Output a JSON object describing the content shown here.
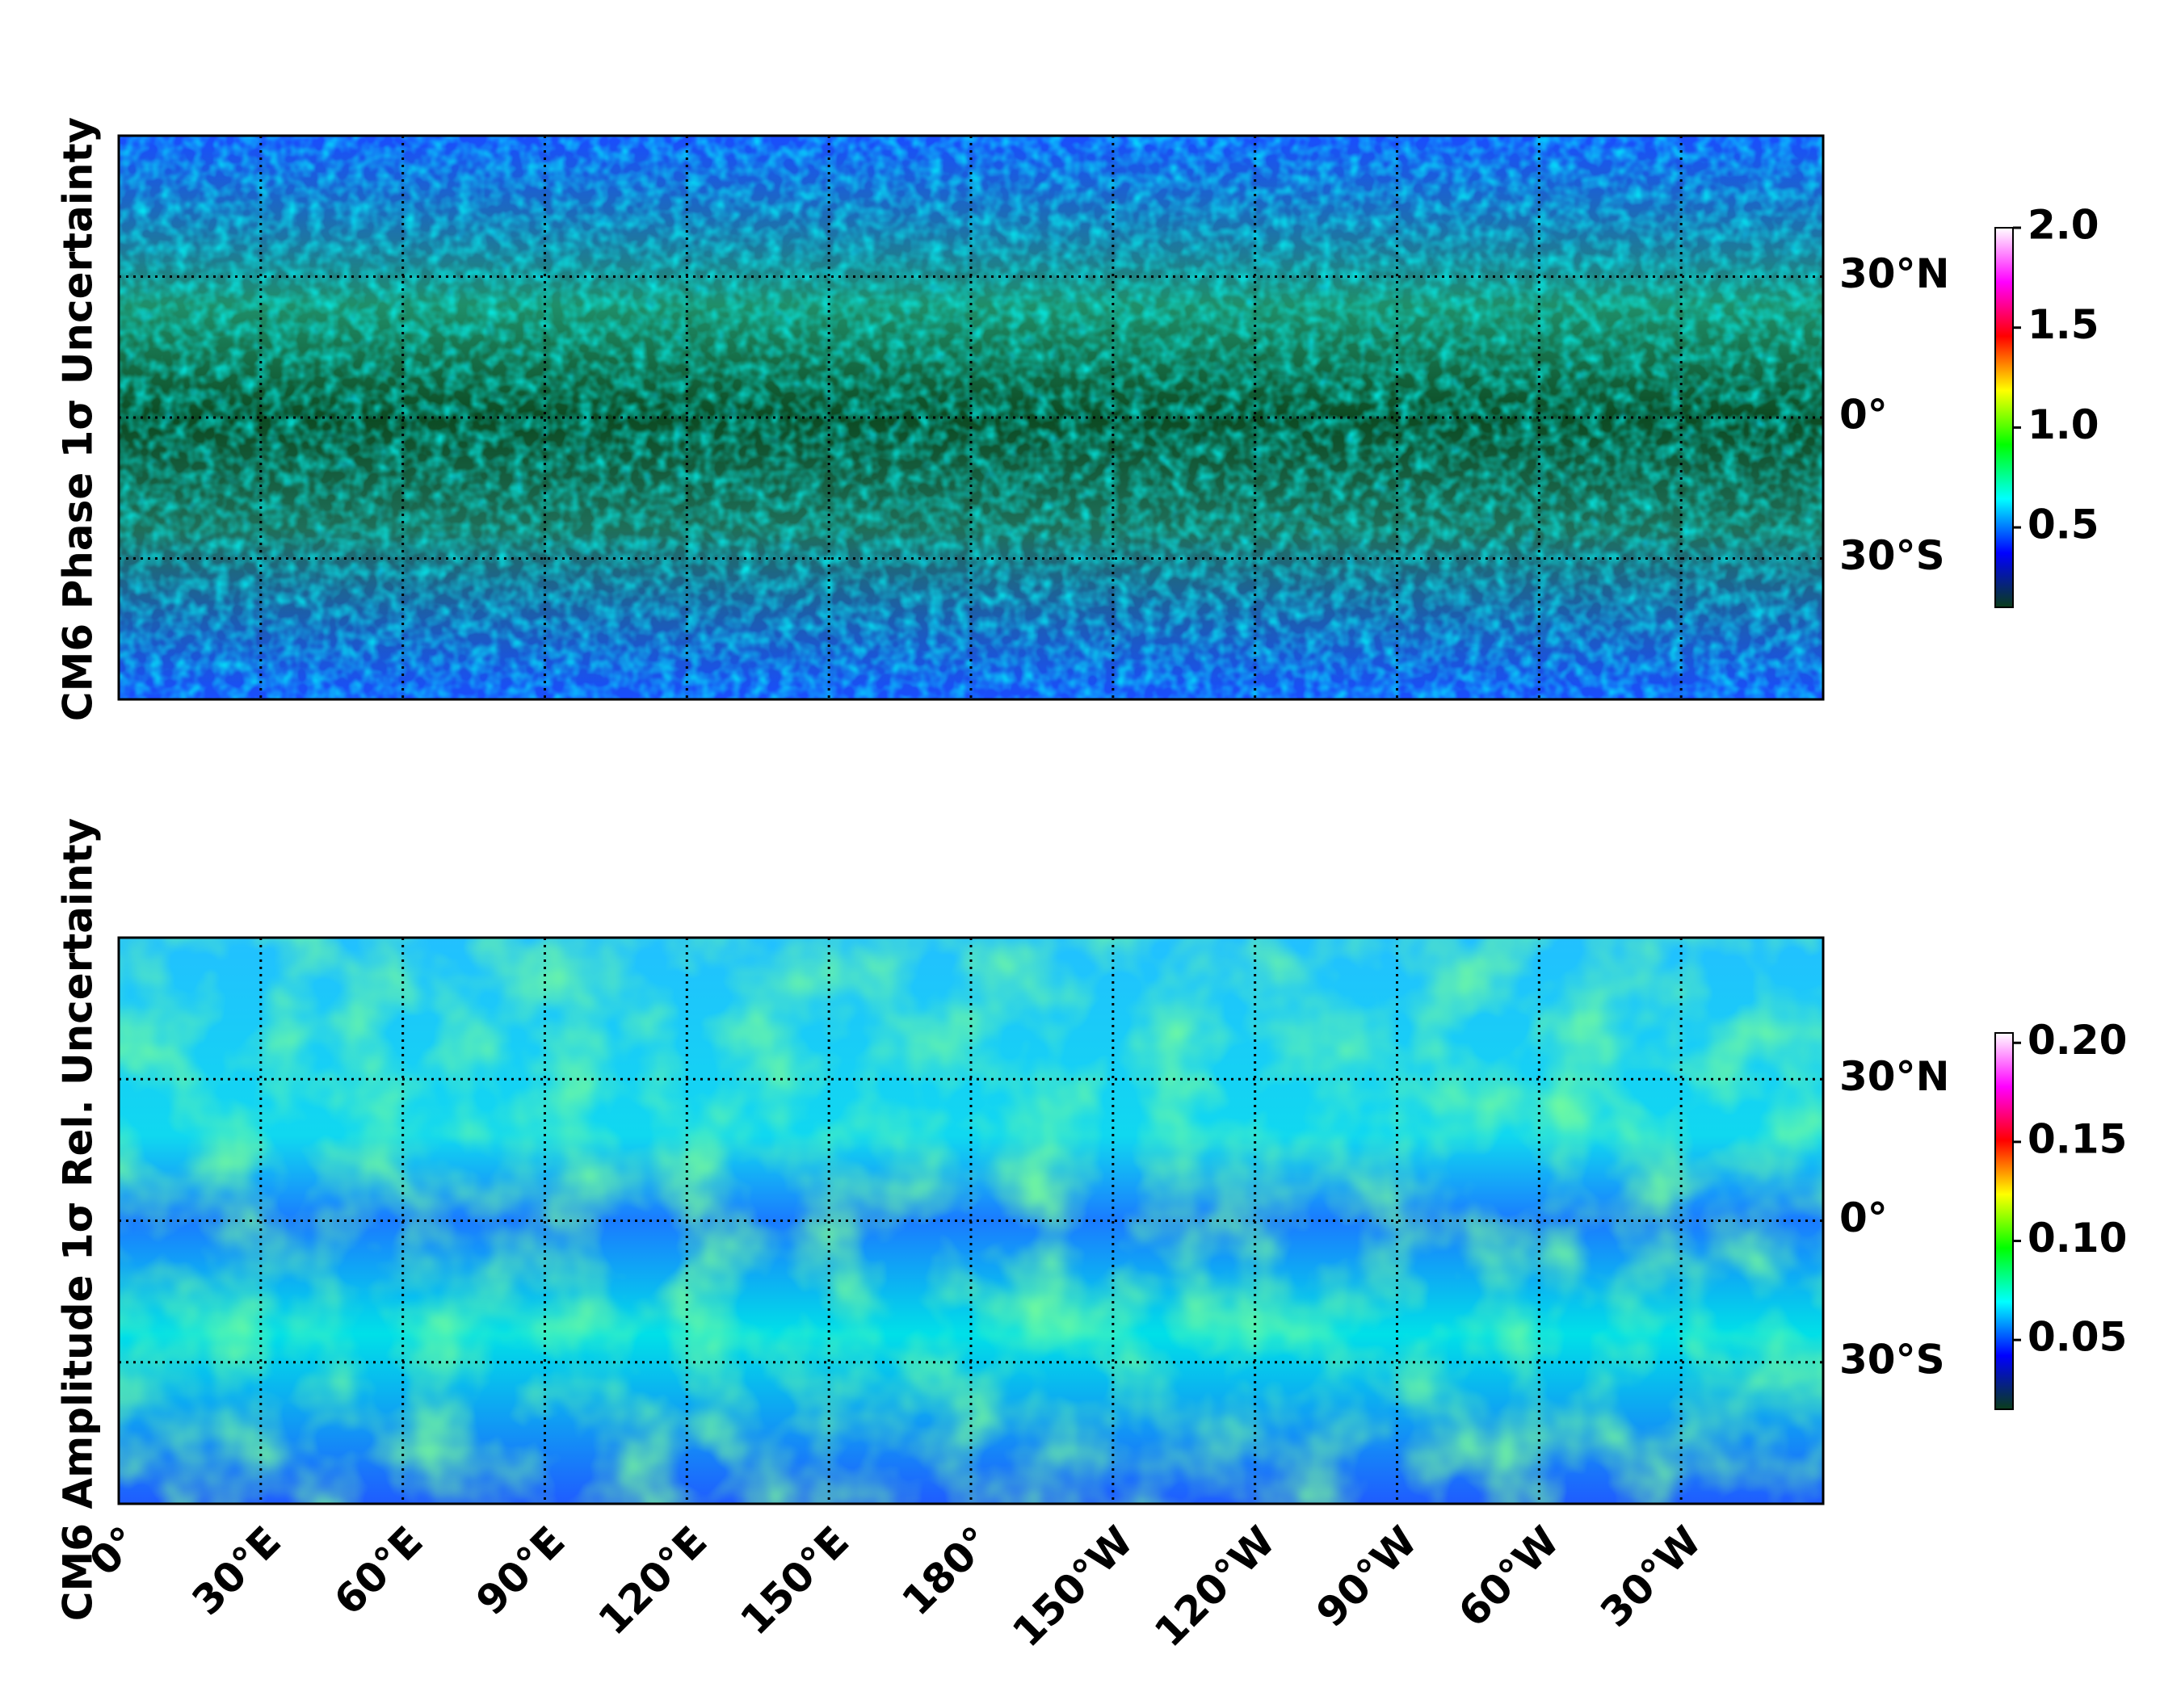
{
  "panels": [
    {
      "ylabel": "CM6 Phase 1σ Uncertainty",
      "xlim": [
        0,
        360
      ],
      "ylim": [
        -60,
        60
      ],
      "lat_ticks": [
        {
          "value": 30,
          "label": "30°N"
        },
        {
          "value": 0,
          "label": "0°"
        },
        {
          "value": -30,
          "label": "30°S"
        }
      ],
      "colorbar": {
        "clim": [
          0.1,
          2.0
        ],
        "ticks": [
          {
            "value": 2,
            "label": "2.0"
          },
          1.5,
          {
            "value": 1,
            "label": "1.0"
          },
          0.5
        ]
      }
    },
    {
      "ylabel": "CM6 Amplitude 1σ Rel. Uncertainty",
      "xlim": [
        0,
        360
      ],
      "ylim": [
        -60,
        60
      ],
      "lat_ticks": [
        {
          "value": 30,
          "label": "30°N"
        },
        {
          "value": 0,
          "label": "0°"
        },
        {
          "value": -30,
          "label": "30°S"
        }
      ],
      "colorbar": {
        "clim": [
          0.015,
          0.205
        ],
        "ticks": [
          {
            "value": 0.2,
            "label": "0.20"
          },
          0.15,
          {
            "value": 0.1,
            "label": "0.10"
          },
          0.05
        ]
      },
      "lon_ticks": [
        {
          "value": 0,
          "label": "0°"
        },
        {
          "value": 30,
          "label": "30°E"
        },
        {
          "value": 60,
          "label": "60°E"
        },
        {
          "value": 90,
          "label": "90°E"
        },
        {
          "value": 120,
          "label": "120°E"
        },
        {
          "value": 150,
          "label": "150°E"
        },
        {
          "value": 180,
          "label": "180°"
        },
        {
          "value": 210,
          "label": "150°W"
        },
        {
          "value": 240,
          "label": "120°W"
        },
        {
          "value": 270,
          "label": "90°W"
        },
        {
          "value": 300,
          "label": "60°W"
        },
        {
          "value": 330,
          "label": "30°W"
        }
      ]
    }
  ],
  "colormap": [
    "#0a3d1a",
    "#0000ff",
    "#00ffff",
    "#00ff00",
    "#ffff00",
    "#ff0000",
    "#ff00ff",
    "#ffffff"
  ]
}
